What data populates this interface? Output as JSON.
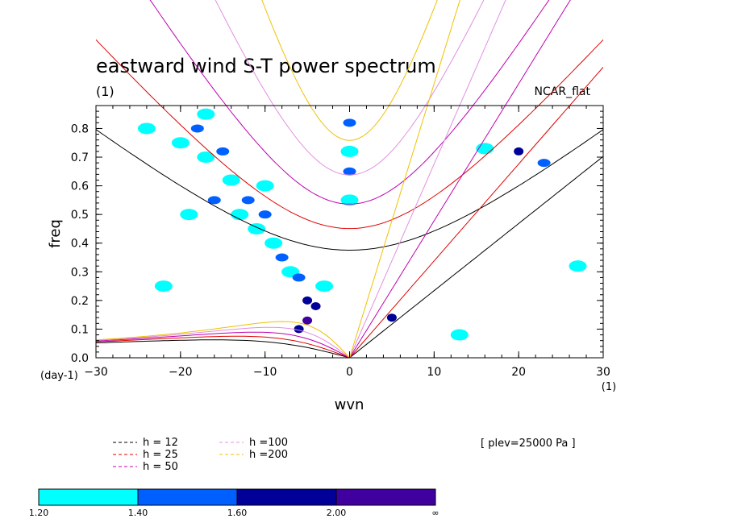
{
  "chart_data": {
    "type": "line",
    "title": "eastward wind S-T power spectrum",
    "subtitle_left": "(1)",
    "subtitle_right": "NCAR_flat",
    "xlabel": "wvn",
    "ylabel": "freq",
    "x_unit_label": "(1)",
    "y_unit_label": "(day-1)",
    "xlim": [
      -30,
      30
    ],
    "ylim": [
      0,
      0.88
    ],
    "x_ticks": [
      -30,
      -20,
      -10,
      0,
      10,
      20,
      30
    ],
    "x_tick_labels": [
      "−30",
      "−20",
      "−10",
      "0",
      "10",
      "20",
      "30"
    ],
    "y_ticks": [
      0,
      0.1,
      0.2,
      0.3,
      0.4,
      0.5,
      0.6,
      0.7,
      0.8
    ],
    "y_tick_labels": [
      "0.0",
      "0.1",
      "0.2",
      "0.3",
      "0.4",
      "0.5",
      "0.6",
      "0.7",
      "0.8"
    ],
    "annotation": "[ plev=25000 Pa ]",
    "series": [
      {
        "name": "h = 12",
        "h": 12,
        "color": "#000000"
      },
      {
        "name": "h = 25",
        "h": 25,
        "color": "#e00000"
      },
      {
        "name": "h = 50",
        "h": 50,
        "color": "#c000b0"
      },
      {
        "name": "h =100",
        "h": 100,
        "color": "#e090e0"
      },
      {
        "name": "h =200",
        "h": 200,
        "color": "#f0c000"
      }
    ],
    "colorbar": {
      "labels": [
        "1.20",
        "1.40",
        "1.60",
        "2.00",
        "∞"
      ],
      "colors": [
        "#00ffff",
        "#0060ff",
        "#000098",
        "#4000a0"
      ]
    },
    "contour_regions": [
      {
        "x": -20,
        "y": 0.75,
        "level": 0
      },
      {
        "x": -18,
        "y": 0.8,
        "level": 1
      },
      {
        "x": -17,
        "y": 0.7,
        "level": 0
      },
      {
        "x": -15,
        "y": 0.72,
        "level": 1
      },
      {
        "x": -14,
        "y": 0.62,
        "level": 0
      },
      {
        "x": -16,
        "y": 0.55,
        "level": 1
      },
      {
        "x": -13,
        "y": 0.5,
        "level": 0
      },
      {
        "x": -12,
        "y": 0.55,
        "level": 1
      },
      {
        "x": -11,
        "y": 0.45,
        "level": 0
      },
      {
        "x": -10,
        "y": 0.5,
        "level": 1
      },
      {
        "x": -9,
        "y": 0.4,
        "level": 0
      },
      {
        "x": -8,
        "y": 0.35,
        "level": 1
      },
      {
        "x": -7,
        "y": 0.3,
        "level": 0
      },
      {
        "x": -6,
        "y": 0.28,
        "level": 1
      },
      {
        "x": -5,
        "y": 0.2,
        "level": 2
      },
      {
        "x": -5,
        "y": 0.13,
        "level": 3
      },
      {
        "x": -4,
        "y": 0.18,
        "level": 2
      },
      {
        "x": -6,
        "y": 0.1,
        "level": 2
      },
      {
        "x": -3,
        "y": 0.25,
        "level": 0
      },
      {
        "x": 0,
        "y": 0.82,
        "level": 1
      },
      {
        "x": 0,
        "y": 0.72,
        "level": 0
      },
      {
        "x": 0,
        "y": 0.65,
        "level": 1
      },
      {
        "x": 0,
        "y": 0.55,
        "level": 0
      },
      {
        "x": 5,
        "y": 0.14,
        "level": 2
      },
      {
        "x": 20,
        "y": 0.72,
        "level": 2
      },
      {
        "x": 23,
        "y": 0.68,
        "level": 1
      },
      {
        "x": -22,
        "y": 0.25,
        "level": 0
      },
      {
        "x": 27,
        "y": 0.32,
        "level": 0
      },
      {
        "x": -17,
        "y": 0.85,
        "level": 0
      },
      {
        "x": -24,
        "y": 0.8,
        "level": 0
      },
      {
        "x": 16,
        "y": 0.73,
        "level": 0
      },
      {
        "x": -19,
        "y": 0.5,
        "level": 0
      },
      {
        "x": -10,
        "y": 0.6,
        "level": 0
      },
      {
        "x": 13,
        "y": 0.08,
        "level": 0
      }
    ]
  }
}
